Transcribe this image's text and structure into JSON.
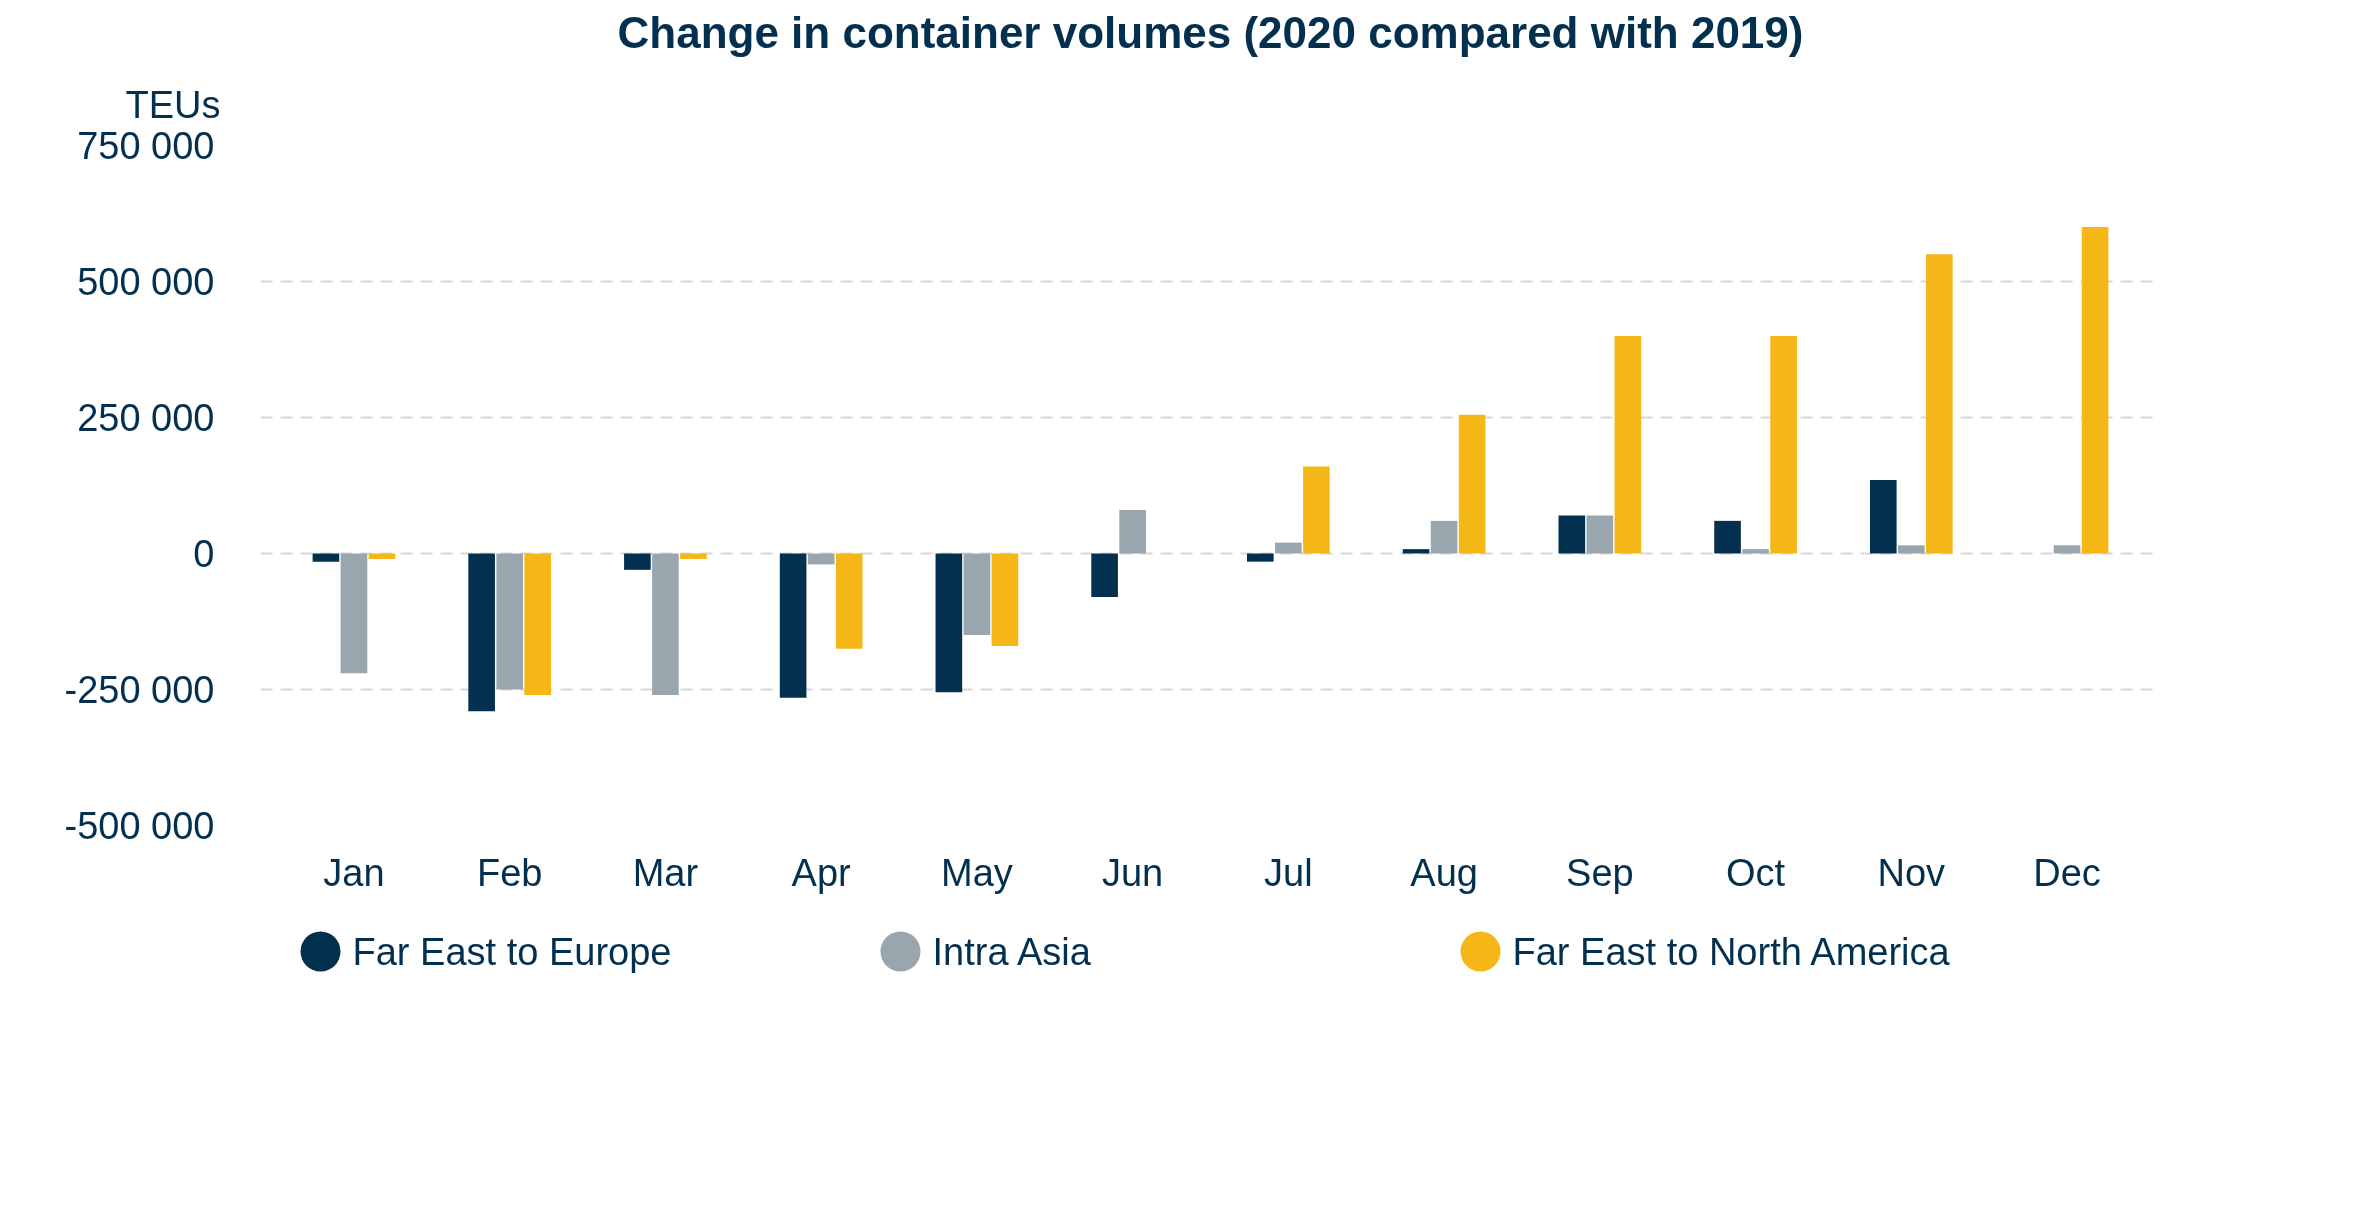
{
  "chart_data": {
    "type": "bar",
    "title": "Change in container volumes (2020 compared with 2019)",
    "ylabel": "TEUs",
    "categories": [
      "Jan",
      "Feb",
      "Mar",
      "Apr",
      "May",
      "Jun",
      "Jul",
      "Aug",
      "Sep",
      "Oct",
      "Nov",
      "Dec"
    ],
    "series": [
      {
        "name": "Far East to Europe",
        "color": "#04304f",
        "values": [
          -15000,
          -290000,
          -30000,
          -265000,
          -255000,
          -80000,
          -15000,
          8000,
          70000,
          60000,
          135000,
          null
        ]
      },
      {
        "name": "Intra Asia",
        "color": "#9aa6ae",
        "values": [
          -220000,
          -250000,
          -260000,
          -20000,
          -150000,
          80000,
          20000,
          60000,
          70000,
          8000,
          15000,
          15000
        ]
      },
      {
        "name": "Far East to North America",
        "color": "#f5b718",
        "values": [
          -10000,
          -260000,
          -10000,
          -175000,
          -170000,
          null,
          160000,
          255000,
          400000,
          400000,
          550000,
          600000
        ]
      }
    ],
    "ylim": [
      -500000,
      750000
    ],
    "yticks": [
      {
        "value": -500000,
        "label": "-500 000"
      },
      {
        "value": -250000,
        "label": "-250 000"
      },
      0,
      {
        "value": 250000,
        "label": "250 000"
      },
      {
        "value": 500000,
        "label": "500 000"
      },
      {
        "value": 750000,
        "label": "750 000"
      }
    ],
    "grid": "y",
    "legend": "bottom"
  }
}
